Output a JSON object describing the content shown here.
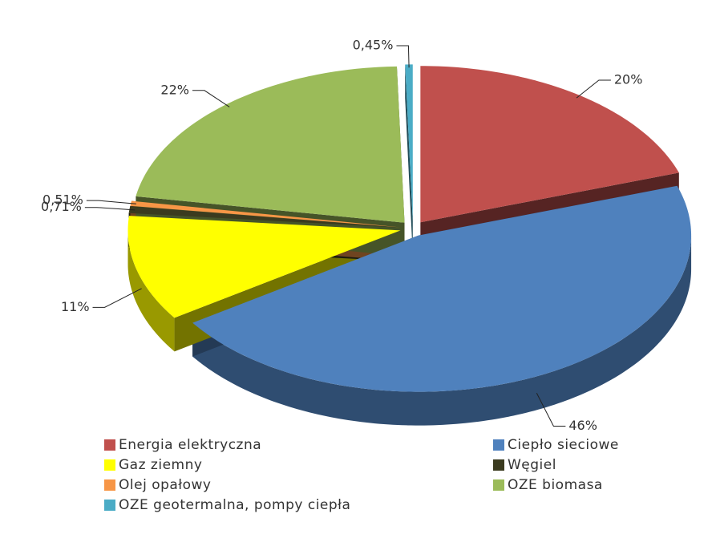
{
  "chart_data": {
    "type": "pie",
    "categories": [
      "Energia elektryczna",
      "Ciepło sieciowe",
      "Gaz ziemny",
      "Węgiel",
      "Olej opałowy",
      "OZE biomasa",
      "OZE geotermalna, pompy ciepła"
    ],
    "values": [
      20,
      46,
      11,
      0.71,
      0.51,
      22,
      0.45
    ],
    "value_labels": [
      "20%",
      "46%",
      "11%",
      "0,71%",
      "0,51%",
      "22%",
      "0,45%"
    ],
    "colors": [
      "#c0504d",
      "#4f81bd",
      "#ffff00",
      "#3b3b1f",
      "#f79646",
      "#9bbb59",
      "#4bacc6"
    ],
    "legend": "bottom"
  }
}
